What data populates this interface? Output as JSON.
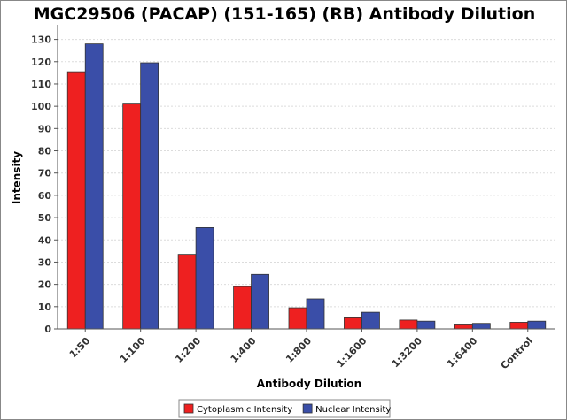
{
  "chart_data": {
    "type": "bar",
    "title": "MGC29506 (PACAP) (151-165) (RB) Antibody Dilution",
    "xlabel": "Antibody Dilution",
    "ylabel": "Intensity",
    "categories": [
      "1:50",
      "1:100",
      "1:200",
      "1:400",
      "1:800",
      "1:1600",
      "1:3200",
      "1:6400",
      "Control"
    ],
    "series": [
      {
        "name": "Cytoplasmic Intensity",
        "color": "#ee2020",
        "values": [
          115.5,
          101,
          33.5,
          19,
          9.5,
          5,
          4,
          2.2,
          3
        ]
      },
      {
        "name": "Nuclear Intensity",
        "color": "#3a4ea8",
        "values": [
          128,
          119.5,
          45.5,
          24.5,
          13.5,
          7.5,
          3.5,
          2.5,
          3.5
        ]
      }
    ],
    "ylim": [
      0,
      135
    ],
    "yticks": [
      0,
      10,
      20,
      30,
      40,
      50,
      60,
      70,
      80,
      90,
      100,
      110,
      120,
      130
    ],
    "grid": true,
    "legend_position": "bottom"
  }
}
